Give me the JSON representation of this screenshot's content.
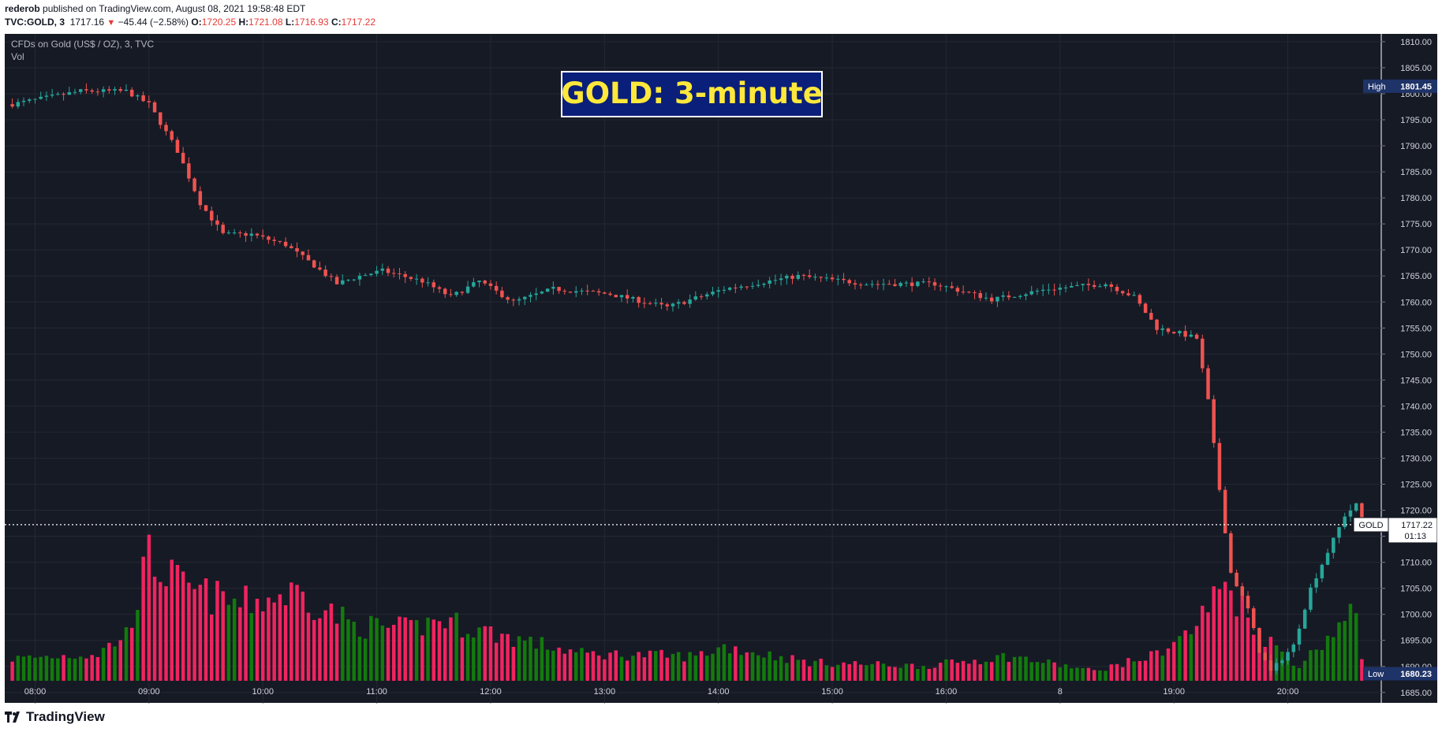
{
  "header": {
    "user": "rederob",
    "published": " published on TradingView.com, August 08, 2021 19:58:48 EDT",
    "symbol": "TVC:GOLD, 3",
    "last": "1717.16",
    "change": "−45.44 (−2.58%)",
    "o_label": "O:",
    "o_value": "1720.25",
    "h_label": "H:",
    "h_value": "1721.08",
    "l_label": "L:",
    "l_value": "1716.93",
    "c_label": "C:",
    "c_value": "1717.22"
  },
  "legend": {
    "instrument": "CFDs on Gold (US$ / OZ), 3, TVC",
    "volume_label": "Vol"
  },
  "overlay_title": "GOLD:  3-minute",
  "price_tags": {
    "high_label": "High",
    "high_value": "1801.45",
    "low_label": "Low",
    "low_value": "1680.23",
    "gold_label": "GOLD",
    "gold_value": "1717.22",
    "countdown": "01:13"
  },
  "footer": {
    "brand": "TradingView"
  },
  "colors": {
    "background": "#161a25",
    "grid": "#242832",
    "up": "#26a69a",
    "down": "#ef5350",
    "volume_up": "#137a0d",
    "volume_down": "#f0245f",
    "title_bg": "#0a1f7a",
    "title_text": "#ffe83a",
    "tag_bg": "#1e3367"
  },
  "chart_data": {
    "type": "candlestick",
    "title": "CFDs on Gold (US$ / OZ), 3, TVC",
    "x_ticks": [
      "08:00",
      "09:00",
      "10:00",
      "11:00",
      "12:00",
      "13:00",
      "14:00",
      "15:00",
      "16:00",
      "8",
      "19:00",
      "20:00"
    ],
    "y_ticks": [
      1810,
      1805,
      1800,
      1795,
      1790,
      1785,
      1780,
      1775,
      1770,
      1765,
      1760,
      1755,
      1750,
      1745,
      1740,
      1735,
      1730,
      1725,
      1720,
      1715,
      1710,
      1705,
      1700,
      1695,
      1690,
      1685
    ],
    "y_tick_labels": [
      "1810.00",
      "1805.00",
      "1800.00",
      "1795.00",
      "1790.00",
      "1785.00",
      "1780.00",
      "1775.00",
      "1770.00",
      "1765.00",
      "1760.00",
      "1755.00",
      "1750.00",
      "1745.00",
      "1740.00",
      "1735.00",
      "1730.00",
      "1725.00",
      "1720.00",
      "1715.00",
      "1710.00",
      "1705.00",
      "1700.00",
      "1695.00",
      "1690.00",
      "1685.00"
    ],
    "ylim": [
      1683,
      1811.5
    ],
    "current_price": 1717.22,
    "high": 1801.45,
    "low": 1680.23,
    "close_path": [
      {
        "bar": 0,
        "price": 1798
      },
      {
        "bar": 12,
        "price": 1800.5
      },
      {
        "bar": 20,
        "price": 1800.5
      },
      {
        "bar": 24,
        "price": 1798
      },
      {
        "bar": 29,
        "price": 1789
      },
      {
        "bar": 33,
        "price": 1779
      },
      {
        "bar": 37,
        "price": 1773
      },
      {
        "bar": 42,
        "price": 1773
      },
      {
        "bar": 48,
        "price": 1771
      },
      {
        "bar": 53,
        "price": 1767
      },
      {
        "bar": 57,
        "price": 1763.5
      },
      {
        "bar": 61,
        "price": 1765
      },
      {
        "bar": 65,
        "price": 1766
      },
      {
        "bar": 72,
        "price": 1764
      },
      {
        "bar": 77,
        "price": 1761
      },
      {
        "bar": 82,
        "price": 1764
      },
      {
        "bar": 88,
        "price": 1760
      },
      {
        "bar": 95,
        "price": 1762.5
      },
      {
        "bar": 105,
        "price": 1761.5
      },
      {
        "bar": 115,
        "price": 1759
      },
      {
        "bar": 125,
        "price": 1762.5
      },
      {
        "bar": 138,
        "price": 1765
      },
      {
        "bar": 150,
        "price": 1763.5
      },
      {
        "bar": 162,
        "price": 1763.5
      },
      {
        "bar": 172,
        "price": 1760.5
      },
      {
        "bar": 182,
        "price": 1762.5
      },
      {
        "bar": 192,
        "price": 1763.5
      },
      {
        "bar": 197,
        "price": 1761
      },
      {
        "bar": 201,
        "price": 1755
      },
      {
        "bar": 205,
        "price": 1754
      },
      {
        "bar": 208,
        "price": 1753
      },
      {
        "bar": 210,
        "price": 1741
      },
      {
        "bar": 212,
        "price": 1724
      },
      {
        "bar": 214,
        "price": 1708
      },
      {
        "bar": 217,
        "price": 1701
      },
      {
        "bar": 219,
        "price": 1693
      },
      {
        "bar": 221,
        "price": 1689
      },
      {
        "bar": 225,
        "price": 1694
      },
      {
        "bar": 228,
        "price": 1705
      },
      {
        "bar": 231,
        "price": 1712
      },
      {
        "bar": 234,
        "price": 1719
      },
      {
        "bar": 236,
        "price": 1721
      },
      {
        "bar": 237,
        "price": 1717.22
      }
    ],
    "volume_path": [
      {
        "bar": 0,
        "vol": 0.18
      },
      {
        "bar": 15,
        "vol": 0.22
      },
      {
        "bar": 20,
        "vol": 0.38
      },
      {
        "bar": 24,
        "vol": 1.0
      },
      {
        "bar": 30,
        "vol": 0.75
      },
      {
        "bar": 40,
        "vol": 0.62
      },
      {
        "bar": 50,
        "vol": 0.72
      },
      {
        "bar": 60,
        "vol": 0.45
      },
      {
        "bar": 70,
        "vol": 0.42
      },
      {
        "bar": 75,
        "vol": 0.5
      },
      {
        "bar": 85,
        "vol": 0.38
      },
      {
        "bar": 100,
        "vol": 0.22
      },
      {
        "bar": 120,
        "vol": 0.2
      },
      {
        "bar": 125,
        "vol": 0.28
      },
      {
        "bar": 140,
        "vol": 0.15
      },
      {
        "bar": 160,
        "vol": 0.12
      },
      {
        "bar": 175,
        "vol": 0.2
      },
      {
        "bar": 190,
        "vol": 0.08
      },
      {
        "bar": 200,
        "vol": 0.2
      },
      {
        "bar": 207,
        "vol": 0.4
      },
      {
        "bar": 213,
        "vol": 0.8
      },
      {
        "bar": 220,
        "vol": 0.35
      },
      {
        "bar": 226,
        "vol": 0.12
      },
      {
        "bar": 233,
        "vol": 0.45
      },
      {
        "bar": 236,
        "vol": 0.55
      },
      {
        "bar": 237,
        "vol": 0.2
      }
    ]
  }
}
